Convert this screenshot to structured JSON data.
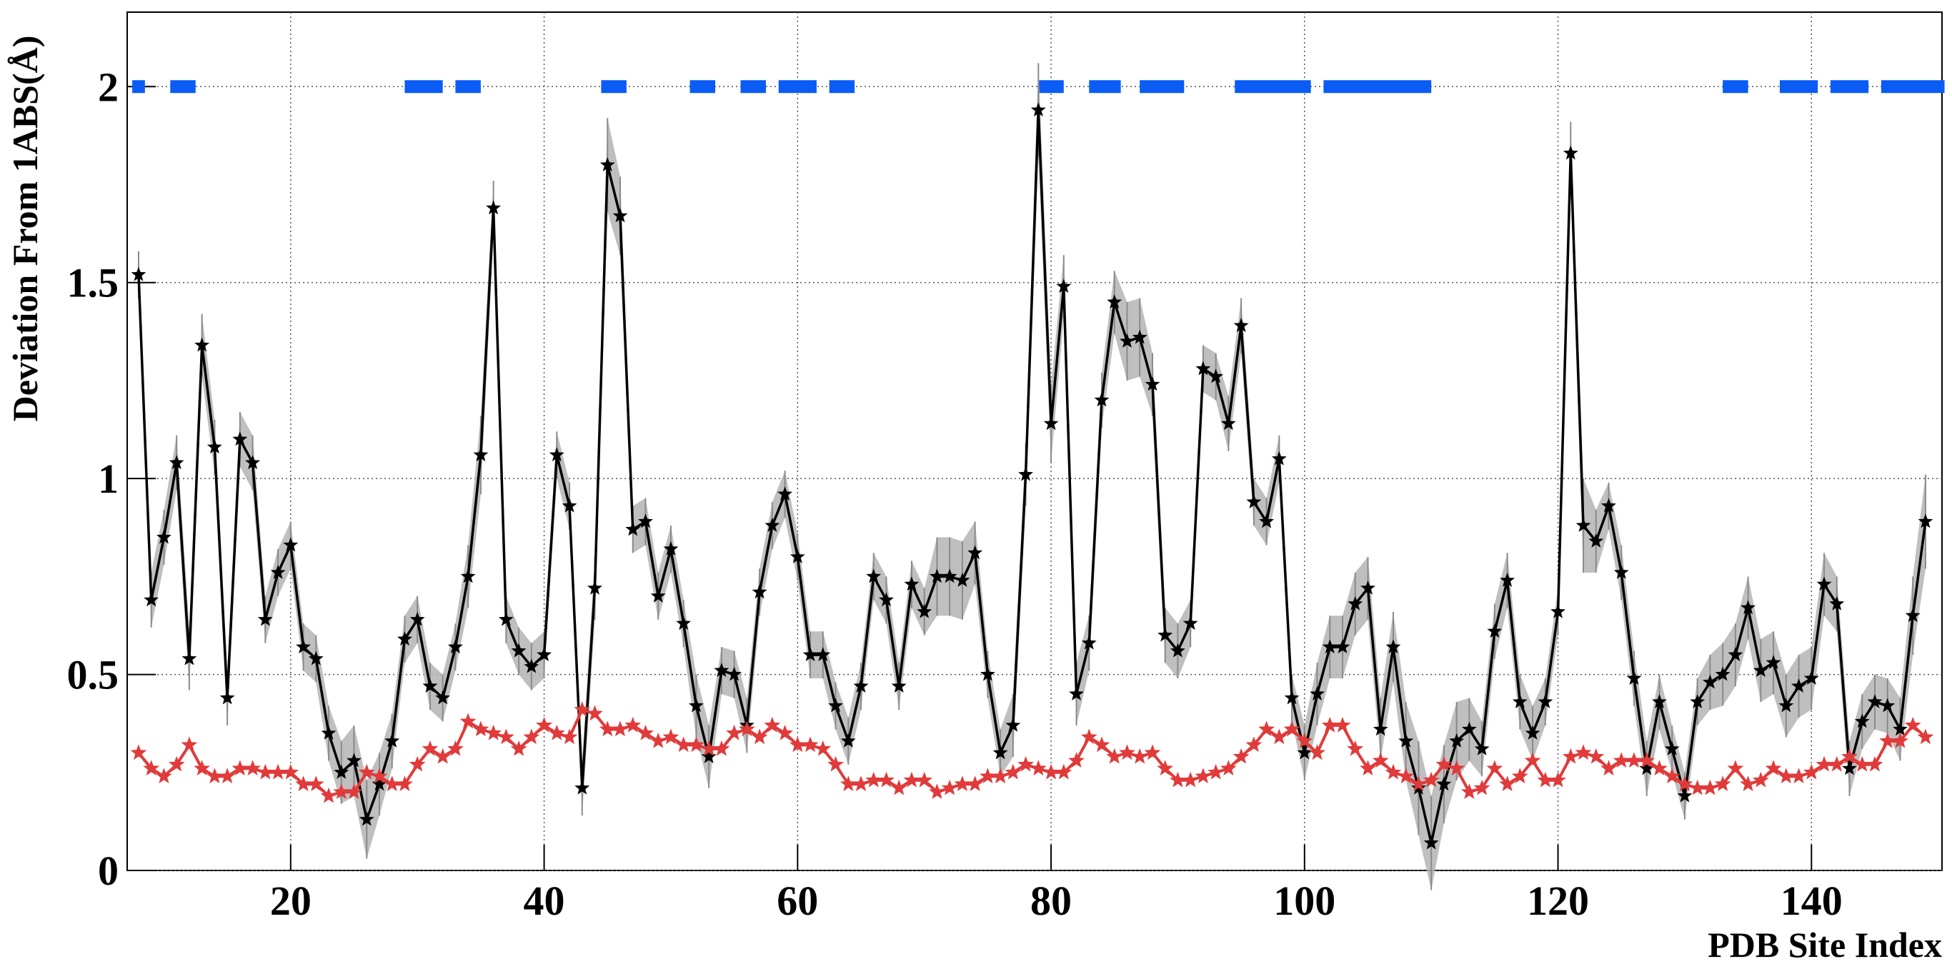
{
  "chart_data": {
    "type": "line",
    "xlabel": "PDB Site Index",
    "ylabel": "Deviation From 1ABS(Å)",
    "xlim": [
      7.1,
      150.3
    ],
    "ylim": [
      0,
      2.19
    ],
    "xticks": [
      20,
      40,
      60,
      80,
      100,
      120,
      140
    ],
    "yticks": [
      0,
      0.5,
      1,
      1.5,
      2
    ],
    "grid": true,
    "x": [
      8,
      9,
      10,
      11,
      12,
      13,
      14,
      15,
      16,
      17,
      18,
      19,
      20,
      21,
      22,
      23,
      24,
      25,
      26,
      27,
      28,
      29,
      30,
      31,
      32,
      33,
      34,
      35,
      36,
      37,
      38,
      39,
      40,
      41,
      42,
      43,
      44,
      45,
      46,
      47,
      48,
      49,
      50,
      51,
      52,
      53,
      54,
      55,
      56,
      57,
      58,
      59,
      60,
      61,
      62,
      63,
      64,
      65,
      66,
      67,
      68,
      69,
      70,
      71,
      72,
      73,
      74,
      75,
      76,
      77,
      78,
      79,
      80,
      81,
      82,
      83,
      84,
      85,
      86,
      87,
      88,
      89,
      90,
      91,
      92,
      93,
      94,
      95,
      96,
      97,
      98,
      99,
      100,
      101,
      102,
      103,
      104,
      105,
      106,
      107,
      108,
      109,
      110,
      111,
      112,
      113,
      114,
      115,
      116,
      117,
      118,
      119,
      120,
      121,
      122,
      123,
      124,
      125,
      126,
      127,
      128,
      129,
      130,
      131,
      132,
      133,
      134,
      135,
      136,
      137,
      138,
      139,
      140,
      141,
      142,
      143,
      144,
      145,
      146,
      147,
      148,
      149
    ],
    "series": [
      {
        "color": "#000000",
        "band_color": "#b4b4b4",
        "values": [
          1.52,
          0.69,
          0.85,
          1.04,
          0.54,
          1.34,
          1.08,
          0.44,
          1.1,
          1.04,
          0.64,
          0.76,
          0.83,
          0.57,
          0.54,
          0.35,
          0.25,
          0.28,
          0.13,
          0.22,
          0.33,
          0.59,
          0.64,
          0.47,
          0.44,
          0.57,
          0.75,
          1.06,
          1.69,
          0.64,
          0.56,
          0.52,
          0.55,
          1.06,
          0.93,
          0.21,
          0.72,
          1.8,
          1.67,
          0.87,
          0.89,
          0.7,
          0.82,
          0.63,
          0.42,
          0.29,
          0.51,
          0.5,
          0.37,
          0.71,
          0.88,
          0.96,
          0.8,
          0.55,
          0.55,
          0.42,
          0.33,
          0.47,
          0.75,
          0.69,
          0.47,
          0.73,
          0.66,
          0.75,
          0.75,
          0.74,
          0.81,
          0.5,
          0.3,
          0.37,
          1.01,
          1.94,
          1.14,
          1.49,
          0.45,
          0.58,
          1.2,
          1.45,
          1.35,
          1.36,
          1.24,
          0.6,
          0.56,
          0.63,
          1.28,
          1.26,
          1.14,
          1.39,
          0.94,
          0.89,
          1.05,
          0.44,
          0.3,
          0.45,
          0.57,
          0.57,
          0.68,
          0.72,
          0.36,
          0.57,
          0.33,
          0.21,
          0.07,
          0.22,
          0.33,
          0.36,
          0.31,
          0.61,
          0.74,
          0.43,
          0.35,
          0.43,
          0.66,
          1.83,
          0.88,
          0.84,
          0.93,
          0.76,
          0.49,
          0.26,
          0.43,
          0.31,
          0.19,
          0.43,
          0.48,
          0.5,
          0.55,
          0.67,
          0.51,
          0.53,
          0.42,
          0.47,
          0.49,
          0.73,
          0.68,
          0.26,
          0.38,
          0.43,
          0.42,
          0.36,
          0.65,
          0.89
        ],
        "errors": [
          0.06,
          0.07,
          0.07,
          0.07,
          0.08,
          0.08,
          0.07,
          0.07,
          0.07,
          0.07,
          0.06,
          0.06,
          0.06,
          0.06,
          0.06,
          0.07,
          0.08,
          0.09,
          0.1,
          0.08,
          0.07,
          0.06,
          0.06,
          0.06,
          0.06,
          0.06,
          0.08,
          0.1,
          0.07,
          0.06,
          0.06,
          0.06,
          0.06,
          0.06,
          0.06,
          0.07,
          0.08,
          0.12,
          0.1,
          0.06,
          0.06,
          0.06,
          0.06,
          0.06,
          0.08,
          0.08,
          0.06,
          0.06,
          0.07,
          0.06,
          0.06,
          0.06,
          0.06,
          0.06,
          0.06,
          0.06,
          0.06,
          0.06,
          0.06,
          0.06,
          0.06,
          0.06,
          0.06,
          0.1,
          0.1,
          0.1,
          0.08,
          0.06,
          0.06,
          0.08,
          0.08,
          0.12,
          0.1,
          0.08,
          0.08,
          0.07,
          0.07,
          0.08,
          0.1,
          0.1,
          0.08,
          0.07,
          0.07,
          0.06,
          0.06,
          0.06,
          0.07,
          0.07,
          0.06,
          0.06,
          0.06,
          0.06,
          0.07,
          0.08,
          0.08,
          0.08,
          0.08,
          0.08,
          0.08,
          0.09,
          0.1,
          0.12,
          0.12,
          0.1,
          0.1,
          0.08,
          0.07,
          0.07,
          0.07,
          0.07,
          0.07,
          0.06,
          0.06,
          0.08,
          0.12,
          0.08,
          0.06,
          0.07,
          0.07,
          0.07,
          0.07,
          0.06,
          0.06,
          0.06,
          0.07,
          0.08,
          0.08,
          0.08,
          0.08,
          0.08,
          0.08,
          0.08,
          0.08,
          0.08,
          0.07,
          0.07,
          0.07,
          0.07,
          0.07,
          0.08,
          0.1,
          0.12
        ]
      },
      {
        "color": "#e03a3a",
        "values": [
          0.3,
          0.26,
          0.24,
          0.27,
          0.32,
          0.26,
          0.24,
          0.24,
          0.26,
          0.26,
          0.25,
          0.25,
          0.25,
          0.22,
          0.22,
          0.19,
          0.2,
          0.2,
          0.25,
          0.24,
          0.22,
          0.22,
          0.27,
          0.31,
          0.29,
          0.31,
          0.38,
          0.36,
          0.35,
          0.34,
          0.31,
          0.34,
          0.37,
          0.35,
          0.34,
          0.41,
          0.4,
          0.36,
          0.36,
          0.37,
          0.35,
          0.33,
          0.34,
          0.32,
          0.32,
          0.31,
          0.31,
          0.35,
          0.36,
          0.34,
          0.37,
          0.35,
          0.32,
          0.32,
          0.31,
          0.27,
          0.22,
          0.22,
          0.23,
          0.23,
          0.21,
          0.23,
          0.23,
          0.2,
          0.21,
          0.22,
          0.22,
          0.24,
          0.24,
          0.25,
          0.27,
          0.26,
          0.25,
          0.25,
          0.28,
          0.34,
          0.32,
          0.29,
          0.3,
          0.29,
          0.3,
          0.26,
          0.23,
          0.23,
          0.24,
          0.25,
          0.26,
          0.29,
          0.32,
          0.36,
          0.34,
          0.36,
          0.33,
          0.3,
          0.37,
          0.37,
          0.31,
          0.26,
          0.28,
          0.25,
          0.24,
          0.22,
          0.23,
          0.27,
          0.26,
          0.2,
          0.21,
          0.26,
          0.22,
          0.24,
          0.28,
          0.23,
          0.23,
          0.29,
          0.3,
          0.29,
          0.26,
          0.28,
          0.28,
          0.28,
          0.26,
          0.24,
          0.22,
          0.21,
          0.21,
          0.22,
          0.26,
          0.22,
          0.23,
          0.26,
          0.24,
          0.24,
          0.25,
          0.27,
          0.27,
          0.29,
          0.27,
          0.27,
          0.33,
          0.33,
          0.37,
          0.34
        ]
      }
    ],
    "segment_level": 2,
    "segment_color": "#0a5cf5",
    "segments": [
      [
        7.5,
        8.5
      ],
      [
        10.5,
        12.5
      ],
      [
        29,
        32
      ],
      [
        33,
        35
      ],
      [
        44.5,
        46.5
      ],
      [
        51.5,
        53.5
      ],
      [
        55.5,
        57.5
      ],
      [
        58.5,
        61.5
      ],
      [
        62.5,
        64.5
      ],
      [
        79,
        81
      ],
      [
        83,
        85.5
      ],
      [
        87,
        90.5
      ],
      [
        94.5,
        100.5
      ],
      [
        101.5,
        110
      ],
      [
        133,
        135
      ],
      [
        137.5,
        140.5
      ],
      [
        141.5,
        144.5
      ],
      [
        145.5,
        150.5
      ]
    ]
  }
}
